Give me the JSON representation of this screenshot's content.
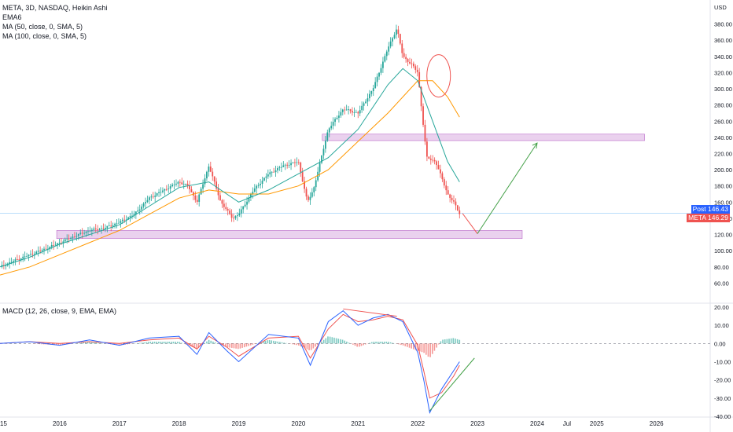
{
  "legend": {
    "symbol": "META, 3D, NASDAQ, Heikin Ashi",
    "ema": "EMA6",
    "ma50": "MA (50, close, 0, SMA, 5)",
    "ma100": "MA (100, close, 0, SMA, 5)"
  },
  "price_scale": {
    "currency": "USD",
    "post_label": "Post",
    "post_value": "146.43",
    "meta_label": "META",
    "meta_value": "146.29"
  },
  "macd_legend": "MACD (12, 26, close, 9, EMA, EMA)",
  "colors": {
    "up": "#26a69a",
    "down": "#ef5350",
    "ma50": "#26a69a",
    "ma100": "#ff9800",
    "macd": "#2962ff",
    "signal": "#ef5350",
    "zone": "#e1bee7",
    "arrow_green": "#43a047"
  },
  "chart_data": [
    {
      "type": "line",
      "panel": "price",
      "ylim": [
        40,
        400
      ],
      "xlim": [
        2015.0,
        2026.9
      ],
      "y_ticks": [
        "380.00",
        "360.00",
        "340.00",
        "320.00",
        "300.00",
        "280.00",
        "260.00",
        "240.00",
        "220.00",
        "200.00",
        "180.00",
        "160.00",
        "140.00",
        "120.00",
        "100.00",
        "80.00",
        "60.00"
      ],
      "y_tick_values": [
        380,
        360,
        340,
        320,
        300,
        280,
        260,
        240,
        220,
        200,
        180,
        160,
        140,
        120,
        100,
        80,
        60
      ],
      "x_ticks": [
        "15",
        "2016",
        "2017",
        "2018",
        "2019",
        "2020",
        "2021",
        "2022",
        "2023",
        "2024",
        "Jul",
        "2025",
        "2026"
      ],
      "x_tick_values": [
        2015.0,
        2016.0,
        2017.0,
        2018.0,
        2019.0,
        2020.0,
        2021.0,
        2022.0,
        2023.0,
        2024.0,
        2024.5,
        2025.0,
        2026.0
      ],
      "last_value": 146.29,
      "series": [
        {
          "name": "EMA6",
          "style": "candles",
          "x": [
            2015.0,
            2015.25,
            2015.5,
            2015.75,
            2016.0,
            2016.25,
            2016.5,
            2016.75,
            2017.0,
            2017.25,
            2017.5,
            2017.75,
            2018.0,
            2018.15,
            2018.3,
            2018.5,
            2018.7,
            2018.9,
            2019.0,
            2019.25,
            2019.5,
            2019.75,
            2020.0,
            2020.15,
            2020.25,
            2020.5,
            2020.75,
            2021.0,
            2021.25,
            2021.5,
            2021.65,
            2021.75,
            2021.9,
            2022.0,
            2022.1,
            2022.15,
            2022.3,
            2022.5,
            2022.6,
            2022.7
          ],
          "values": [
            80,
            88,
            95,
            102,
            110,
            118,
            125,
            128,
            135,
            145,
            165,
            175,
            185,
            180,
            160,
            205,
            160,
            140,
            145,
            175,
            195,
            205,
            210,
            160,
            175,
            250,
            275,
            270,
            300,
            350,
            375,
            340,
            330,
            320,
            250,
            215,
            210,
            170,
            160,
            146
          ]
        },
        {
          "name": "MA (50, close, 0, SMA, 5)",
          "style": "line",
          "x": [
            2015.0,
            2015.5,
            2016.0,
            2016.5,
            2017.0,
            2017.5,
            2018.0,
            2018.5,
            2019.0,
            2019.5,
            2020.0,
            2020.5,
            2021.0,
            2021.5,
            2021.75,
            2022.0,
            2022.25,
            2022.5,
            2022.7
          ],
          "values": [
            80,
            92,
            108,
            120,
            132,
            155,
            178,
            185,
            160,
            175,
            195,
            215,
            250,
            305,
            325,
            310,
            260,
            210,
            185
          ]
        },
        {
          "name": "MA (100, close, 0, SMA, 5)",
          "style": "line",
          "x": [
            2015.0,
            2015.5,
            2016.0,
            2016.5,
            2017.0,
            2017.5,
            2018.0,
            2018.5,
            2019.0,
            2019.5,
            2020.0,
            2020.5,
            2021.0,
            2021.5,
            2021.75,
            2022.0,
            2022.25,
            2022.5,
            2022.7
          ],
          "values": [
            70,
            80,
            95,
            110,
            125,
            145,
            165,
            175,
            170,
            170,
            180,
            200,
            235,
            270,
            290,
            310,
            310,
            290,
            265
          ]
        }
      ]
    },
    {
      "type": "line",
      "panel": "macd",
      "ylim": [
        -40,
        20
      ],
      "y_ticks": [
        "20.00",
        "10.00",
        "0.00",
        "-10.00",
        "-20.00",
        "-30.00",
        "-40.00"
      ],
      "y_tick_values": [
        20,
        10,
        0,
        -10,
        -20,
        -30,
        -40
      ],
      "series": [
        {
          "name": "MACD",
          "x": [
            2015.0,
            2015.5,
            2016.0,
            2016.5,
            2017.0,
            2017.5,
            2018.0,
            2018.3,
            2018.5,
            2018.8,
            2019.0,
            2019.5,
            2020.0,
            2020.2,
            2020.5,
            2020.75,
            2021.0,
            2021.25,
            2021.5,
            2021.75,
            2022.0,
            2022.1,
            2022.2,
            2022.4,
            2022.6,
            2022.7
          ],
          "values": [
            0,
            1,
            -1,
            2,
            -1,
            3,
            4,
            -6,
            6,
            -4,
            -10,
            5,
            3,
            -12,
            12,
            18,
            10,
            14,
            16,
            12,
            -5,
            -20,
            -38,
            -25,
            -15,
            -10
          ]
        },
        {
          "name": "Signal",
          "x": [
            2015.0,
            2015.5,
            2016.0,
            2016.5,
            2017.0,
            2017.5,
            2018.0,
            2018.3,
            2018.5,
            2018.8,
            2019.0,
            2019.5,
            2020.0,
            2020.2,
            2020.5,
            2020.75,
            2021.0,
            2021.25,
            2021.5,
            2021.75,
            2022.0,
            2022.1,
            2022.2,
            2022.4,
            2022.6,
            2022.7
          ],
          "values": [
            0,
            1,
            0,
            1,
            0,
            2,
            3,
            -3,
            4,
            -2,
            -7,
            3,
            4,
            -8,
            8,
            16,
            12,
            13,
            15,
            13,
            -1,
            -15,
            -30,
            -27,
            -18,
            -12
          ]
        }
      ]
    }
  ]
}
